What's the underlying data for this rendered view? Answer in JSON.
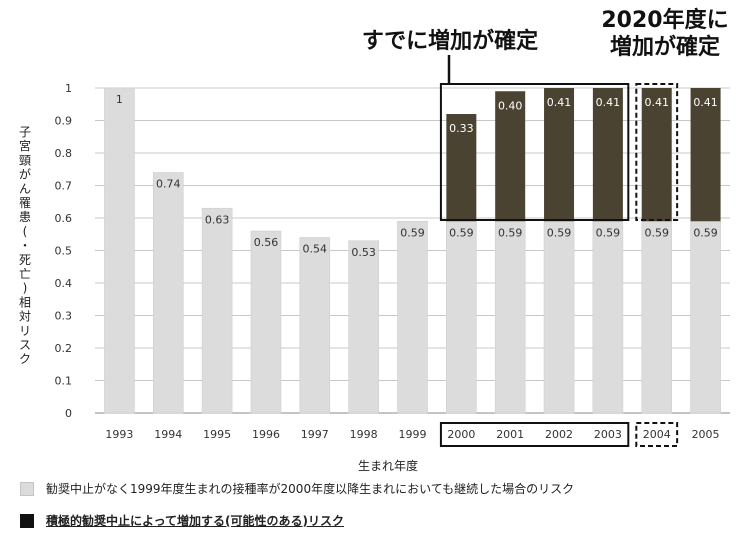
{
  "chart_data": {
    "type": "bar",
    "stacked": true,
    "categories": [
      "1993",
      "1994",
      "1995",
      "1996",
      "1997",
      "1998",
      "1999",
      "2000",
      "2001",
      "2002",
      "2003",
      "2004",
      "2005"
    ],
    "series": [
      {
        "name": "勧奨中止がなく1999年度生まれの接種率が2000年度以降生まれにおいても継続した場合のリスク",
        "color": "#dcdcdc",
        "values": [
          1,
          0.74,
          0.63,
          0.56,
          0.54,
          0.53,
          0.59,
          0.59,
          0.59,
          0.59,
          0.59,
          0.59,
          0.59
        ],
        "labels": [
          "1",
          "0.74",
          "0.63",
          "0.56",
          "0.54",
          "0.53",
          "0.59",
          "0.59",
          "0.59",
          "0.59",
          "0.59",
          "0.59",
          "0.59"
        ]
      },
      {
        "name": "積極的勧奨中止によって増加する(可能性のある)リスク",
        "color": "#4a4331",
        "values": [
          null,
          null,
          null,
          null,
          null,
          null,
          null,
          0.33,
          0.4,
          0.41,
          0.41,
          0.41,
          0.41
        ],
        "labels": [
          "",
          "",
          "",
          "",
          "",
          "",
          "",
          "0.33",
          "0.40",
          "0.41",
          "0.41",
          "0.41",
          "0.41"
        ]
      }
    ],
    "ylabel": "子宮頸がん罹患(・死亡)相対リスク",
    "xlabel": "生まれ年度",
    "ylim": [
      0,
      1
    ],
    "yticks": [
      "0",
      "0.1",
      "0.2",
      "0.3",
      "0.4",
      "0.5",
      "0.6",
      "0.7",
      "0.8",
      "0.9",
      "1"
    ],
    "grid": true,
    "legend_position": "bottom",
    "annotations": [
      {
        "text": "すでに増加が確定",
        "years": [
          "2000",
          "2003"
        ],
        "style": "solid"
      },
      {
        "text_lines": [
          "2020年度に",
          "増加が確定"
        ],
        "years": [
          "2004"
        ],
        "style": "dashed"
      }
    ]
  }
}
